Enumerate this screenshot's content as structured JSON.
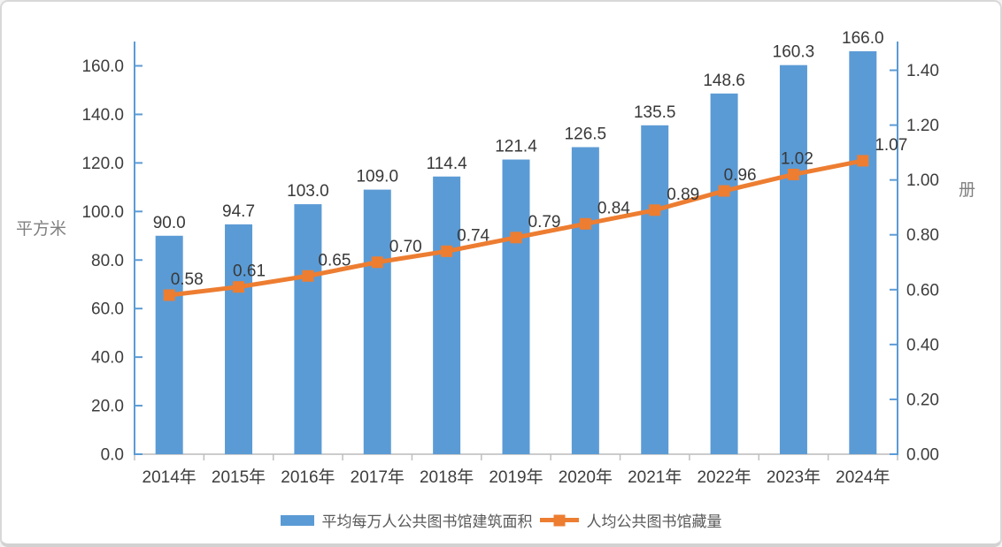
{
  "frame": {
    "background": "#ffffff",
    "border_color": "#d8d8d8"
  },
  "chart_data": {
    "type": "combo-bar-line",
    "categories": [
      "2014年",
      "2015年",
      "2016年",
      "2017年",
      "2018年",
      "2019年",
      "2020年",
      "2021年",
      "2022年",
      "2023年",
      "2024年"
    ],
    "series": [
      {
        "name": "平均每万人公共图书馆建筑面积",
        "type": "bar",
        "axis": "left",
        "color": "#5B9BD5",
        "values": [
          90.0,
          94.7,
          103.0,
          109.0,
          114.4,
          121.4,
          126.5,
          135.5,
          148.6,
          160.3,
          166.0
        ],
        "labels": [
          "90.0",
          "94.7",
          "103.0",
          "109.0",
          "114.4",
          "121.4",
          "126.5",
          "135.5",
          "148.6",
          "160.3",
          "166.0"
        ]
      },
      {
        "name": "人均公共图书馆藏量",
        "type": "line",
        "axis": "right",
        "color": "#ED7D31",
        "values": [
          0.58,
          0.61,
          0.65,
          0.7,
          0.74,
          0.79,
          0.84,
          0.89,
          0.96,
          1.02,
          1.07
        ],
        "labels": [
          "0.58",
          "0.61",
          "0.65",
          "0.70",
          "0.74",
          "0.79",
          "0.84",
          "0.89",
          "0.96",
          "1.02",
          "1.07"
        ]
      }
    ],
    "left_axis": {
      "title": "平方米",
      "min": 0,
      "max": 160,
      "step": 20,
      "tick_labels": [
        "0.0",
        "20.0",
        "40.0",
        "60.0",
        "80.0",
        "100.0",
        "120.0",
        "140.0",
        "160.0"
      ],
      "color": "#5B9BD5"
    },
    "right_axis": {
      "title": "册",
      "min": 0.0,
      "max": 1.4,
      "step": 0.2,
      "tick_labels": [
        "0.00",
        "0.20",
        "0.40",
        "0.60",
        "0.80",
        "1.00",
        "1.20",
        "1.40"
      ],
      "color": "#5B9BD5"
    },
    "x_axis": {
      "line_color": "#cccccc",
      "tick_color": "#bfbfbf"
    },
    "grid": false,
    "legend_position": "bottom",
    "line_label_dx": [
      20,
      12,
      30,
      32,
      30,
      32,
      32,
      32,
      18,
      4,
      32
    ]
  },
  "text_colors": {
    "tick": "#3d3d3d",
    "data_label": "#383838",
    "axis_title": "#808080",
    "legend": "#595959"
  }
}
